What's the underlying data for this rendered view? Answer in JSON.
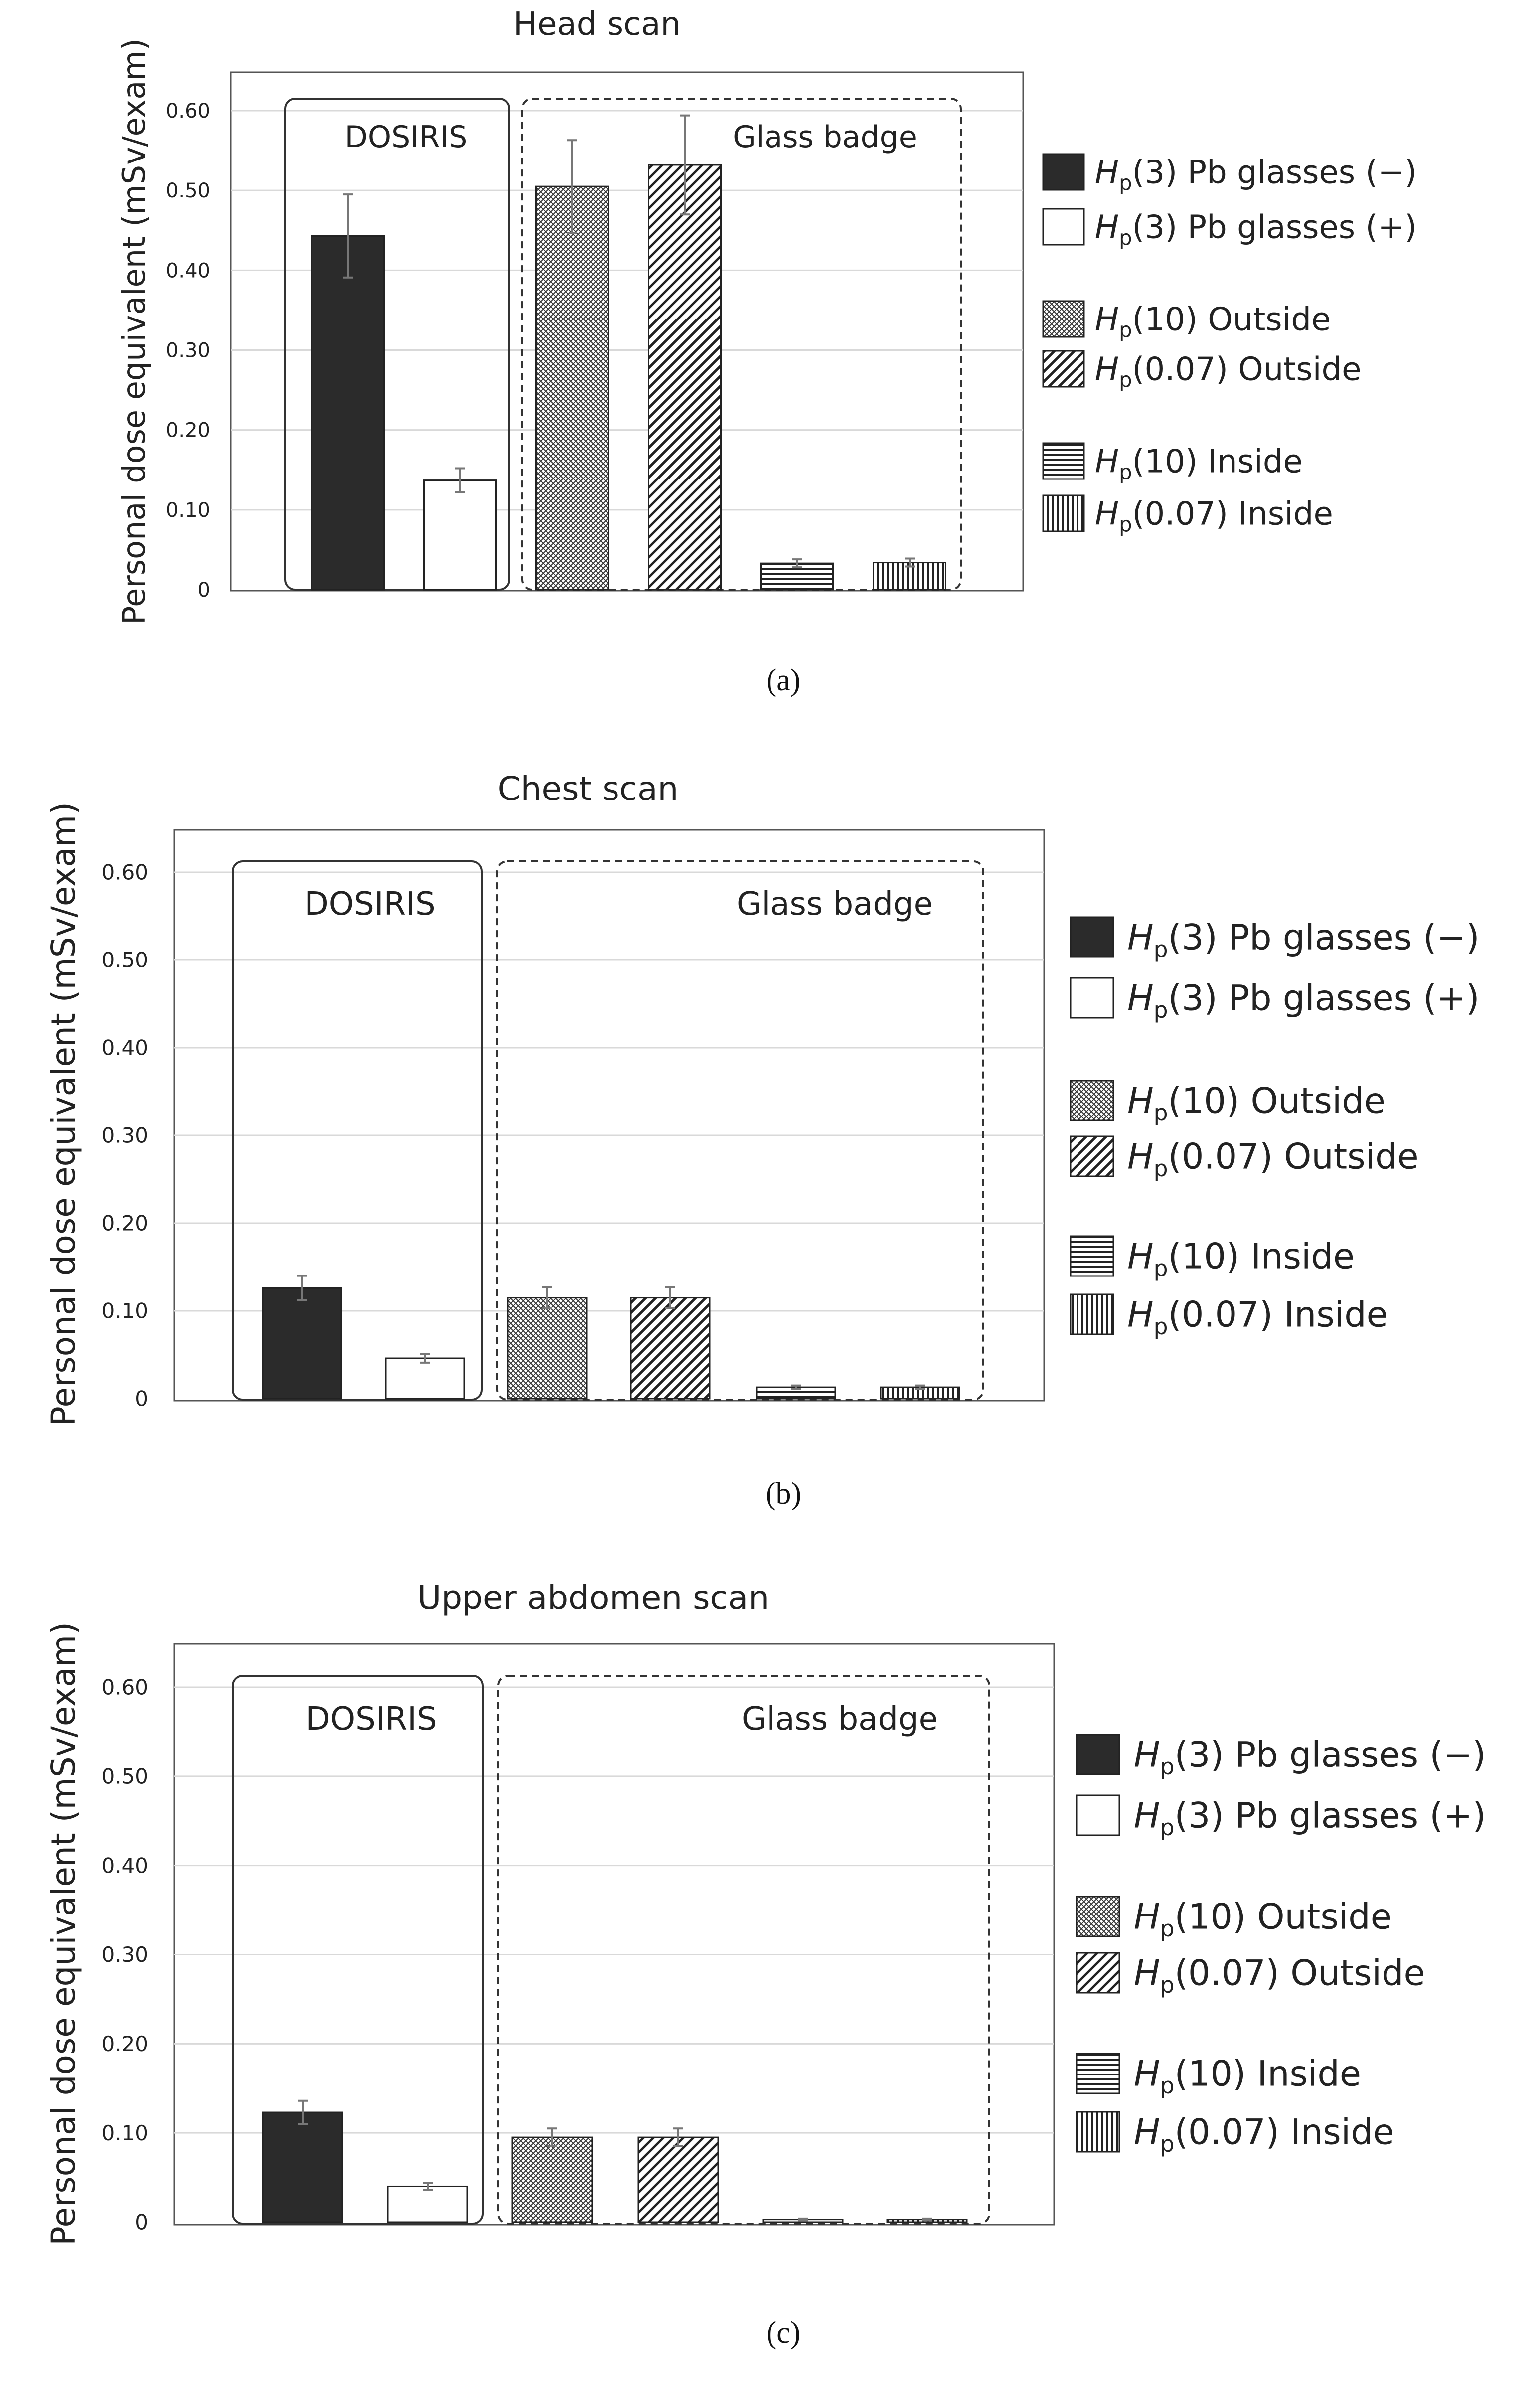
{
  "y_axis_label": "Personal dose equivalent (mSv/exam)",
  "group_labels": {
    "left": "DOSIRIS",
    "right": "Glass badge"
  },
  "legend": [
    {
      "base": "H",
      "sub": "p",
      "rest": "(3) Pb glasses (−)",
      "pattern": "solid"
    },
    {
      "base": "H",
      "sub": "p",
      "rest": "(3) Pb glasses (+)",
      "pattern": "white"
    },
    {
      "base": "H",
      "sub": "p",
      "rest": "(10) Outside",
      "pattern": "crosshatch"
    },
    {
      "base": "H",
      "sub": "p",
      "rest": "(0.07) Outside",
      "pattern": "diagonal"
    },
    {
      "base": "H",
      "sub": "p",
      "rest": "(10) Inside",
      "pattern": "horizontal"
    },
    {
      "base": "H",
      "sub": "p",
      "rest": "(0.07) Inside",
      "pattern": "vertical"
    }
  ],
  "colors": {
    "solid": "#2b2b2b",
    "grid": "#d9d9d9",
    "frame": "#555555",
    "error": "#777777"
  },
  "chart_data": [
    {
      "type": "bar",
      "panel": "(a)",
      "title": "Head scan",
      "categories": [
        "Hp(3) Pb glasses (−)",
        "Hp(3) Pb glasses (+)",
        "Hp(10) Outside",
        "Hp(0.07) Outside",
        "Hp(10) Inside",
        "Hp(0.07) Inside"
      ],
      "values": [
        0.443,
        0.137,
        0.505,
        0.532,
        0.033,
        0.034
      ],
      "errors": [
        0.052,
        0.015,
        0.058,
        0.062,
        0.005,
        0.005
      ],
      "yticks": [
        "0",
        "0.10",
        "0.20",
        "0.30",
        "0.40",
        "0.50",
        "0.60"
      ],
      "ylim": [
        0,
        0.65
      ],
      "ylabel": "Personal dose equivalent (mSv/exam)",
      "grid": true,
      "legend": "right"
    },
    {
      "type": "bar",
      "panel": "(b)",
      "title": "Chest scan",
      "categories": [
        "Hp(3) Pb glasses (−)",
        "Hp(3) Pb glasses (+)",
        "Hp(10) Outside",
        "Hp(0.07) Outside",
        "Hp(10) Inside",
        "Hp(0.07) Inside"
      ],
      "values": [
        0.126,
        0.046,
        0.115,
        0.115,
        0.013,
        0.013
      ],
      "errors": [
        0.014,
        0.005,
        0.012,
        0.012,
        0.002,
        0.002
      ],
      "yticks": [
        "0",
        "0.10",
        "0.20",
        "0.30",
        "0.40",
        "0.50",
        "0.60"
      ],
      "ylim": [
        0,
        0.63
      ],
      "ylabel": "Personal dose equivalent (mSv/exam)",
      "grid": true,
      "legend": "right"
    },
    {
      "type": "bar",
      "panel": "(c)",
      "title": "Upper abdomen scan",
      "categories": [
        "Hp(3) Pb glasses (−)",
        "Hp(3) Pb glasses (+)",
        "Hp(10) Outside",
        "Hp(0.07) Outside",
        "Hp(10) Inside",
        "Hp(0.07) Inside"
      ],
      "values": [
        0.123,
        0.04,
        0.095,
        0.095,
        0.003,
        0.003
      ],
      "errors": [
        0.013,
        0.004,
        0.01,
        0.01,
        0.001,
        0.001
      ],
      "yticks": [
        "0",
        "0.10",
        "0.20",
        "0.30",
        "0.40",
        "0.50",
        "0.60"
      ],
      "ylim": [
        0,
        0.65
      ],
      "ylabel": "Personal dose equivalent (mSv/exam)",
      "grid": true,
      "legend": "right"
    }
  ]
}
